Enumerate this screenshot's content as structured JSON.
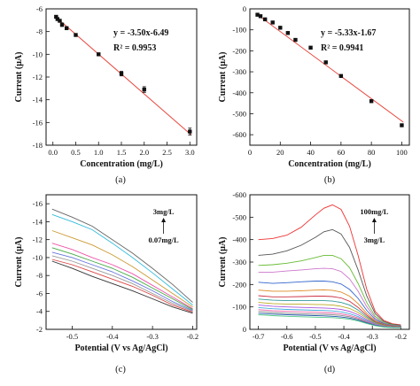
{
  "chart_data": [
    {
      "id": "a",
      "type": "scatter",
      "panel_label": "(a)",
      "xlabel": "Concentration (mg/L)",
      "ylabel": "Current (μA)",
      "xlim": [
        -0.15,
        3.15
      ],
      "ylim": [
        -18,
        -6
      ],
      "xticks": [
        0.0,
        0.5,
        1.0,
        1.5,
        2.0,
        2.5,
        3.0
      ],
      "xtick_labels": [
        "0.0",
        "0.5",
        "1.0",
        "1.5",
        "2.0",
        "2.5",
        "3.0"
      ],
      "yticks": [
        -6,
        -8,
        -10,
        -12,
        -14,
        -16,
        -18
      ],
      "ytick_labels": [
        "-6",
        "-8",
        "-10",
        "-12",
        "-14",
        "-16",
        "-18"
      ],
      "x": [
        0.07,
        0.1,
        0.15,
        0.2,
        0.3,
        0.5,
        1.0,
        1.5,
        2.0,
        3.0
      ],
      "y": [
        -6.7,
        -6.9,
        -7.05,
        -7.4,
        -7.7,
        -8.3,
        -10.0,
        -11.7,
        -13.1,
        -16.8
      ],
      "error": [
        0.1,
        0.1,
        0.1,
        0.15,
        0.1,
        0.1,
        0.1,
        0.2,
        0.25,
        0.3
      ],
      "fit": {
        "slope": -3.5,
        "intercept": -6.49
      },
      "equation": "y = -3.50x-6.49",
      "r2": "R² = 0.9953",
      "grid": false
    },
    {
      "id": "b",
      "type": "scatter",
      "panel_label": "(b)",
      "xlabel": "Concentration (mg/L)",
      "ylabel": "Current (μA)",
      "xlim": [
        0,
        105
      ],
      "ylim": [
        -650,
        0
      ],
      "xticks": [
        0,
        20,
        40,
        60,
        80,
        100
      ],
      "xtick_labels": [
        "0",
        "20",
        "40",
        "60",
        "80",
        "100"
      ],
      "yticks": [
        0,
        -100,
        -200,
        -300,
        -400,
        -500,
        -600
      ],
      "ytick_labels": [
        "0",
        "-100",
        "-200",
        "-300",
        "-400",
        "-500",
        "-600"
      ],
      "x": [
        5,
        7,
        10,
        15,
        20,
        25,
        30,
        40,
        50,
        60,
        80,
        100
      ],
      "y": [
        -28,
        -35,
        -50,
        -65,
        -90,
        -115,
        -148,
        -185,
        -255,
        -320,
        -440,
        -555
      ],
      "fit": {
        "slope": -5.33,
        "intercept": -1.67
      },
      "equation": "y = -5.33x-1.67",
      "r2": "R² = 0.9941",
      "grid": false
    },
    {
      "id": "c",
      "type": "line",
      "panel_label": "(c)",
      "xlabel": "Potential (V vs Ag/AgCl)",
      "ylabel": "Current (μA)",
      "xlim": [
        -0.565,
        -0.19
      ],
      "ylim": [
        -2,
        -17
      ],
      "xticks": [
        -0.5,
        -0.4,
        -0.3,
        -0.2
      ],
      "xtick_labels": [
        "-0.5",
        "-0.4",
        "-0.3",
        "-0.2"
      ],
      "yticks": [
        -16,
        -14,
        -12,
        -10,
        -8,
        -6,
        -4,
        -2
      ],
      "ytick_labels": [
        "-16",
        "-14",
        "-12",
        "-10",
        "-8",
        "-6",
        "-4",
        "-2"
      ],
      "x": [
        -0.55,
        -0.5,
        -0.45,
        -0.4,
        -0.35,
        -0.3,
        -0.25,
        -0.2
      ],
      "series": [
        {
          "values": [
            -15.4,
            -14.5,
            -13.5,
            -12.0,
            -10.5,
            -8.8,
            -7.0,
            -5.0
          ],
          "color": "#666666"
        },
        {
          "values": [
            -14.8,
            -14.0,
            -13.1,
            -11.6,
            -10.0,
            -8.3,
            -6.5,
            -4.7
          ],
          "color": "#33bbdd"
        },
        {
          "values": [
            -13.0,
            -12.2,
            -11.4,
            -10.3,
            -9.0,
            -7.5,
            -6.0,
            -4.5
          ],
          "color": "#cc9933"
        },
        {
          "values": [
            -11.6,
            -10.9,
            -10.0,
            -9.2,
            -8.2,
            -6.9,
            -5.6,
            -4.3
          ],
          "color": "#ee55aa"
        },
        {
          "values": [
            -11.1,
            -10.4,
            -9.6,
            -8.8,
            -7.8,
            -6.6,
            -5.4,
            -4.2
          ],
          "color": "#44aa44"
        },
        {
          "values": [
            -10.6,
            -10.0,
            -9.2,
            -8.4,
            -7.4,
            -6.3,
            -5.1,
            -4.1
          ],
          "color": "#6677dd"
        },
        {
          "values": [
            -10.2,
            -9.6,
            -8.8,
            -8.0,
            -7.1,
            -6.0,
            -4.9,
            -4.0
          ],
          "color": "#999999"
        },
        {
          "values": [
            -9.8,
            -9.2,
            -8.4,
            -7.6,
            -6.8,
            -5.8,
            -4.7,
            -3.9
          ],
          "color": "#dd4444"
        },
        {
          "values": [
            -9.6,
            -8.8,
            -7.9,
            -7.1,
            -6.3,
            -5.4,
            -4.5,
            -3.8
          ],
          "color": "#333333"
        }
      ],
      "annotation_top": "3mg/L",
      "annotation_bottom": "0.07mg/L",
      "grid": false
    },
    {
      "id": "d",
      "type": "line",
      "panel_label": "(d)",
      "xlabel": "Potential (V vs Ag/AgCl)",
      "ylabel": "Current (μA)",
      "xlim": [
        -0.73,
        -0.17
      ],
      "ylim": [
        0,
        -600
      ],
      "xticks": [
        -0.7,
        -0.6,
        -0.5,
        -0.4,
        -0.3,
        -0.2
      ],
      "xtick_labels": [
        "-0.7",
        "-0.6",
        "-0.5",
        "-0.4",
        "-0.3",
        "-0.2"
      ],
      "yticks": [
        -600,
        -500,
        -400,
        -300,
        -200,
        -100,
        0
      ],
      "ytick_labels": [
        "-600",
        "-500",
        "-400",
        "-300",
        "-200",
        "-100",
        "0"
      ],
      "x": [
        -0.7,
        -0.65,
        -0.6,
        -0.55,
        -0.5,
        -0.47,
        -0.44,
        -0.41,
        -0.38,
        -0.35,
        -0.32,
        -0.29,
        -0.26,
        -0.23,
        -0.2
      ],
      "series": [
        {
          "values": [
            -400,
            -405,
            -420,
            -455,
            -510,
            -540,
            -555,
            -535,
            -460,
            -330,
            -180,
            -80,
            -40,
            -25,
            -20
          ],
          "color": "#ee3333"
        },
        {
          "values": [
            -330,
            -335,
            -350,
            -375,
            -410,
            -435,
            -445,
            -425,
            -365,
            -265,
            -150,
            -70,
            -35,
            -22,
            -18
          ],
          "color": "#555555"
        },
        {
          "values": [
            -285,
            -288,
            -295,
            -305,
            -320,
            -330,
            -330,
            -315,
            -275,
            -205,
            -120,
            -58,
            -30,
            -20,
            -16
          ],
          "color": "#66bb33"
        },
        {
          "values": [
            -255,
            -255,
            -260,
            -265,
            -270,
            -272,
            -270,
            -258,
            -225,
            -170,
            -102,
            -50,
            -27,
            -18,
            -15
          ],
          "color": "#cc77cc"
        },
        {
          "values": [
            -210,
            -205,
            -208,
            -212,
            -215,
            -215,
            -212,
            -202,
            -178,
            -138,
            -85,
            -44,
            -25,
            -17,
            -14
          ],
          "color": "#3366cc"
        },
        {
          "values": [
            -175,
            -170,
            -170,
            -172,
            -175,
            -176,
            -174,
            -166,
            -148,
            -115,
            -72,
            -38,
            -22,
            -15,
            -13
          ],
          "color": "#dd8822"
        },
        {
          "values": [
            -150,
            -145,
            -145,
            -146,
            -148,
            -148,
            -146,
            -140,
            -125,
            -98,
            -63,
            -34,
            -20,
            -14,
            -12
          ],
          "color": "#cc3344"
        },
        {
          "values": [
            -135,
            -130,
            -128,
            -128,
            -128,
            -128,
            -126,
            -120,
            -108,
            -86,
            -56,
            -31,
            -18,
            -13,
            -11
          ],
          "color": "#339999"
        },
        {
          "values": [
            -120,
            -115,
            -113,
            -112,
            -111,
            -110,
            -108,
            -103,
            -93,
            -75,
            -50,
            -28,
            -17,
            -12,
            -10
          ],
          "color": "#bbaa22"
        },
        {
          "values": [
            -108,
            -103,
            -100,
            -98,
            -96,
            -95,
            -93,
            -89,
            -80,
            -65,
            -44,
            -25,
            -15,
            -11,
            -10
          ],
          "color": "#aa55dd"
        },
        {
          "values": [
            -97,
            -92,
            -89,
            -87,
            -85,
            -84,
            -82,
            -78,
            -70,
            -57,
            -39,
            -23,
            -14,
            -10,
            -9
          ],
          "color": "#44aadd"
        },
        {
          "values": [
            -88,
            -83,
            -80,
            -78,
            -76,
            -75,
            -73,
            -69,
            -62,
            -51,
            -35,
            -21,
            -13,
            -10,
            -9
          ],
          "color": "#ee66aa"
        },
        {
          "values": [
            -80,
            -75,
            -72,
            -70,
            -68,
            -67,
            -65,
            -62,
            -56,
            -46,
            -32,
            -19,
            -12,
            -9,
            -8
          ],
          "color": "#888888"
        },
        {
          "values": [
            -72,
            -68,
            -65,
            -63,
            -61,
            -60,
            -58,
            -55,
            -50,
            -41,
            -29,
            -18,
            -11,
            -9,
            -8
          ],
          "color": "#2255aa"
        },
        {
          "values": [
            -65,
            -61,
            -58,
            -56,
            -54,
            -53,
            -52,
            -49,
            -45,
            -37,
            -26,
            -16,
            -10,
            -8,
            -7
          ],
          "color": "#55cc88"
        }
      ],
      "annotation_top": "100mg/L",
      "annotation_bottom": "3mg/L",
      "grid": false
    }
  ]
}
